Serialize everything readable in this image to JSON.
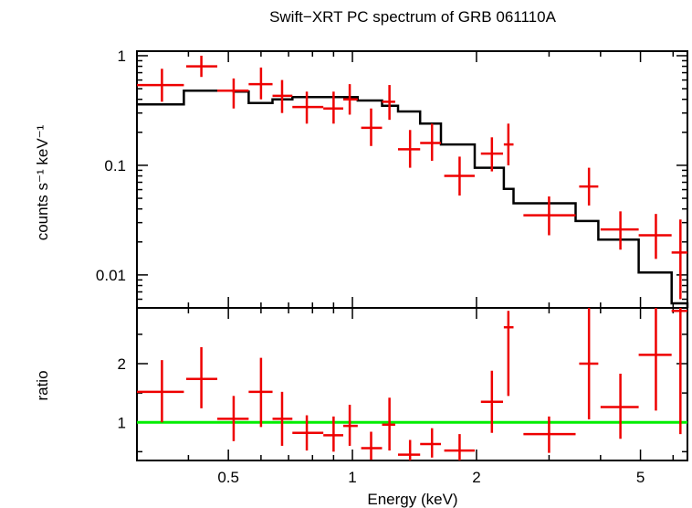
{
  "chart_data": [
    {
      "type": "scatter",
      "title": "Swift−XRT PC spectrum of GRB 061110A",
      "ylabel": "counts s⁻¹ keV⁻¹",
      "xlabel": "",
      "xscale": "log",
      "yscale": "log",
      "xlim": [
        0.3,
        6.5
      ],
      "ylim": [
        0.005,
        1.1
      ],
      "y_ticks": [
        "1",
        "0.1",
        "0.01"
      ],
      "colors": {
        "data": "#ee0000",
        "model": "#000000"
      },
      "data": [
        {
          "x": 0.345,
          "xlo": 0.3,
          "xhi": 0.39,
          "y": 0.54,
          "ylo": 0.38,
          "yhi": 0.76
        },
        {
          "x": 0.43,
          "xlo": 0.395,
          "xhi": 0.47,
          "y": 0.8,
          "ylo": 0.64,
          "yhi": 1.0
        },
        {
          "x": 0.515,
          "xlo": 0.47,
          "xhi": 0.56,
          "y": 0.48,
          "ylo": 0.33,
          "yhi": 0.62
        },
        {
          "x": 0.6,
          "xlo": 0.56,
          "xhi": 0.64,
          "y": 0.55,
          "ylo": 0.4,
          "yhi": 0.78
        },
        {
          "x": 0.675,
          "xlo": 0.64,
          "xhi": 0.715,
          "y": 0.43,
          "ylo": 0.3,
          "yhi": 0.6
        },
        {
          "x": 0.775,
          "xlo": 0.715,
          "xhi": 0.85,
          "y": 0.34,
          "ylo": 0.24,
          "yhi": 0.47
        },
        {
          "x": 0.9,
          "xlo": 0.85,
          "xhi": 0.95,
          "y": 0.33,
          "ylo": 0.24,
          "yhi": 0.47
        },
        {
          "x": 0.985,
          "xlo": 0.95,
          "xhi": 1.03,
          "y": 0.4,
          "ylo": 0.29,
          "yhi": 0.55
        },
        {
          "x": 1.11,
          "xlo": 1.05,
          "xhi": 1.18,
          "y": 0.22,
          "ylo": 0.15,
          "yhi": 0.33
        },
        {
          "x": 1.23,
          "xlo": 1.18,
          "xhi": 1.27,
          "y": 0.38,
          "ylo": 0.26,
          "yhi": 0.54
        },
        {
          "x": 1.38,
          "xlo": 1.29,
          "xhi": 1.46,
          "y": 0.14,
          "ylo": 0.095,
          "yhi": 0.21
        },
        {
          "x": 1.56,
          "xlo": 1.46,
          "xhi": 1.64,
          "y": 0.16,
          "ylo": 0.11,
          "yhi": 0.24
        },
        {
          "x": 1.82,
          "xlo": 1.67,
          "xhi": 1.98,
          "y": 0.08,
          "ylo": 0.053,
          "yhi": 0.12
        },
        {
          "x": 2.18,
          "xlo": 2.05,
          "xhi": 2.32,
          "y": 0.128,
          "ylo": 0.088,
          "yhi": 0.18
        },
        {
          "x": 2.39,
          "xlo": 2.33,
          "xhi": 2.46,
          "y": 0.155,
          "ylo": 0.1,
          "yhi": 0.24
        },
        {
          "x": 3.0,
          "xlo": 2.6,
          "xhi": 3.48,
          "y": 0.035,
          "ylo": 0.023,
          "yhi": 0.052
        },
        {
          "x": 3.75,
          "xlo": 3.55,
          "xhi": 3.95,
          "y": 0.064,
          "ylo": 0.043,
          "yhi": 0.095
        },
        {
          "x": 4.47,
          "xlo": 4.0,
          "xhi": 4.95,
          "y": 0.026,
          "ylo": 0.017,
          "yhi": 0.038
        },
        {
          "x": 5.45,
          "xlo": 4.95,
          "xhi": 5.95,
          "y": 0.023,
          "ylo": 0.014,
          "yhi": 0.036
        },
        {
          "x": 6.25,
          "xlo": 5.95,
          "xhi": 6.5,
          "y": 0.016,
          "ylo": 0.006,
          "yhi": 0.032
        }
      ],
      "model": [
        {
          "xlo": 0.3,
          "xhi": 0.39,
          "y": 0.36
        },
        {
          "xlo": 0.39,
          "xhi": 0.515,
          "y": 0.48
        },
        {
          "xlo": 0.515,
          "xhi": 0.56,
          "y": 0.47
        },
        {
          "xlo": 0.56,
          "xhi": 0.64,
          "y": 0.37
        },
        {
          "xlo": 0.64,
          "xhi": 0.715,
          "y": 0.4
        },
        {
          "xlo": 0.715,
          "xhi": 0.85,
          "y": 0.42
        },
        {
          "xlo": 0.85,
          "xhi": 1.03,
          "y": 0.42
        },
        {
          "xlo": 1.03,
          "xhi": 1.18,
          "y": 0.39
        },
        {
          "xlo": 1.18,
          "xhi": 1.29,
          "y": 0.35
        },
        {
          "xlo": 1.29,
          "xhi": 1.46,
          "y": 0.31
        },
        {
          "xlo": 1.46,
          "xhi": 1.64,
          "y": 0.24
        },
        {
          "xlo": 1.64,
          "xhi": 1.98,
          "y": 0.155
        },
        {
          "xlo": 1.98,
          "xhi": 2.05,
          "y": 0.095
        },
        {
          "xlo": 2.05,
          "xhi": 2.33,
          "y": 0.095
        },
        {
          "xlo": 2.33,
          "xhi": 2.46,
          "y": 0.061
        },
        {
          "xlo": 2.46,
          "xhi": 3.48,
          "y": 0.045
        },
        {
          "xlo": 3.48,
          "xhi": 3.95,
          "y": 0.031
        },
        {
          "xlo": 3.95,
          "xhi": 4.95,
          "y": 0.021
        },
        {
          "xlo": 4.95,
          "xhi": 5.95,
          "y": 0.0105
        },
        {
          "xlo": 5.95,
          "xhi": 6.5,
          "y": 0.0055
        }
      ]
    },
    {
      "type": "scatter",
      "title": "",
      "xlabel": "Energy (keV)",
      "ylabel": "ratio",
      "xscale": "log",
      "yscale": "linear",
      "xlim": [
        0.3,
        6.5
      ],
      "ylim": [
        0.35,
        2.95
      ],
      "x_ticks": [
        "0.5",
        "1",
        "2",
        "5"
      ],
      "y_ticks": [
        "1",
        "2"
      ],
      "reference_line": {
        "y": 1,
        "color": "#00ee00"
      },
      "colors": {
        "data": "#ee0000"
      },
      "data": [
        {
          "x": 0.345,
          "xlo": 0.3,
          "xhi": 0.39,
          "y": 1.52,
          "ylo": 1.0,
          "yhi": 2.06
        },
        {
          "x": 0.43,
          "xlo": 0.395,
          "xhi": 0.47,
          "y": 1.74,
          "ylo": 1.24,
          "yhi": 2.28
        },
        {
          "x": 0.515,
          "xlo": 0.47,
          "xhi": 0.56,
          "y": 1.06,
          "ylo": 0.68,
          "yhi": 1.45
        },
        {
          "x": 0.6,
          "xlo": 0.56,
          "xhi": 0.64,
          "y": 1.52,
          "ylo": 0.92,
          "yhi": 2.1
        },
        {
          "x": 0.675,
          "xlo": 0.64,
          "xhi": 0.715,
          "y": 1.06,
          "ylo": 0.6,
          "yhi": 1.52
        },
        {
          "x": 0.775,
          "xlo": 0.715,
          "xhi": 0.85,
          "y": 0.82,
          "ylo": 0.52,
          "yhi": 1.12
        },
        {
          "x": 0.9,
          "xlo": 0.85,
          "xhi": 0.95,
          "y": 0.78,
          "ylo": 0.5,
          "yhi": 1.1
        },
        {
          "x": 0.985,
          "xlo": 0.95,
          "xhi": 1.03,
          "y": 0.94,
          "ylo": 0.6,
          "yhi": 1.3
        },
        {
          "x": 1.11,
          "xlo": 1.05,
          "xhi": 1.18,
          "y": 0.56,
          "ylo": 0.36,
          "yhi": 0.84
        },
        {
          "x": 1.23,
          "xlo": 1.18,
          "xhi": 1.27,
          "y": 0.96,
          "ylo": 0.52,
          "yhi": 1.42
        },
        {
          "x": 1.38,
          "xlo": 1.29,
          "xhi": 1.46,
          "y": 0.45,
          "ylo": 0.35,
          "yhi": 0.7
        },
        {
          "x": 1.56,
          "xlo": 1.46,
          "xhi": 1.64,
          "y": 0.63,
          "ylo": 0.4,
          "yhi": 0.9
        },
        {
          "x": 1.82,
          "xlo": 1.67,
          "xhi": 1.98,
          "y": 0.52,
          "ylo": 0.35,
          "yhi": 0.8
        },
        {
          "x": 2.18,
          "xlo": 2.05,
          "xhi": 2.32,
          "y": 1.35,
          "ylo": 0.82,
          "yhi": 1.88
        },
        {
          "x": 2.39,
          "xlo": 2.33,
          "xhi": 2.46,
          "y": 2.62,
          "ylo": 1.45,
          "yhi": 2.9
        },
        {
          "x": 3.0,
          "xlo": 2.6,
          "xhi": 3.48,
          "y": 0.8,
          "ylo": 0.48,
          "yhi": 1.1
        },
        {
          "x": 3.75,
          "xlo": 3.55,
          "xhi": 3.95,
          "y": 2.0,
          "ylo": 1.05,
          "yhi": 2.95
        },
        {
          "x": 4.47,
          "xlo": 4.0,
          "xhi": 4.95,
          "y": 1.26,
          "ylo": 0.72,
          "yhi": 1.83
        },
        {
          "x": 5.45,
          "xlo": 4.95,
          "xhi": 5.95,
          "y": 2.15,
          "ylo": 1.2,
          "yhi": 2.95
        },
        {
          "x": 6.25,
          "xlo": 5.95,
          "xhi": 6.5,
          "y": 2.9,
          "ylo": 0.8,
          "yhi": 2.95
        }
      ]
    }
  ]
}
